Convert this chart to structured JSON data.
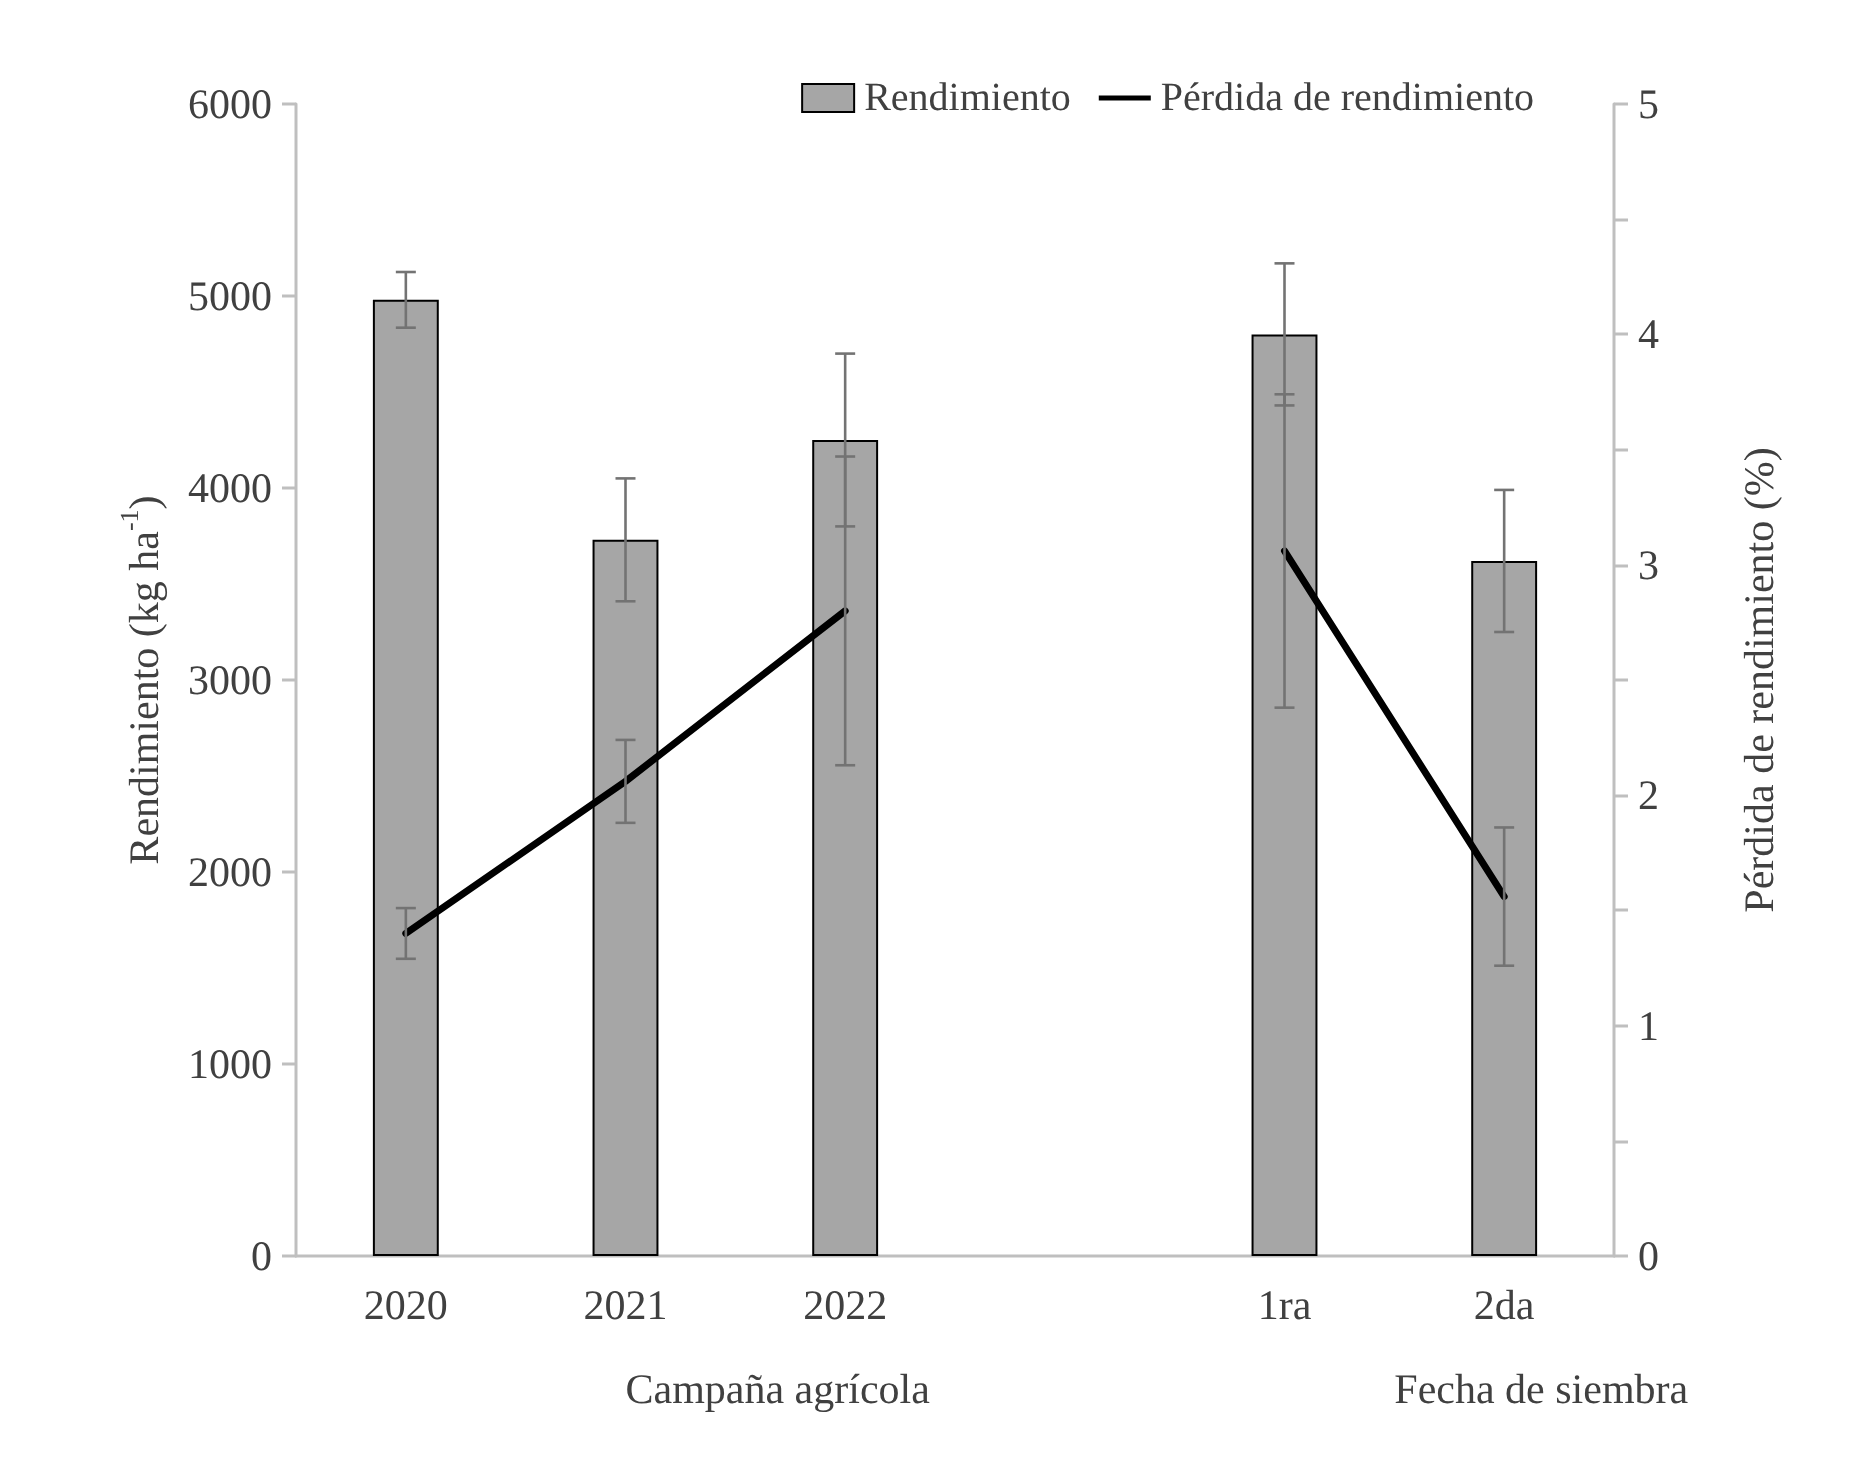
{
  "chart_data": {
    "type": "bar",
    "categories": [
      "2020",
      "2021",
      "2022",
      null,
      "1ra",
      "2da"
    ],
    "series": [
      {
        "name": "Rendimiento",
        "color": "#a6a6a6",
        "values": [
          4980,
          3730,
          4250,
          null,
          4800,
          3620
        ],
        "errors": [
          145,
          320,
          450,
          null,
          370,
          370
        ]
      },
      {
        "name": "Pérdida de rendimiento",
        "type": "line",
        "axis": "y2",
        "color": "#000000",
        "values": [
          1.4,
          2.06,
          2.8,
          null,
          3.06,
          1.56
        ],
        "errors": [
          0.11,
          0.18,
          0.67,
          null,
          0.68,
          0.3
        ]
      }
    ],
    "ylabel": "Rendimiento (kg ha$^{-1}$)",
    "y2label": "Pérdida de rendimiento (%)",
    "ylim": [
      0,
      6000
    ],
    "yticks": [
      0,
      1000,
      2000,
      3000,
      4000,
      5000,
      6000
    ],
    "y2lim": [
      0,
      5
    ],
    "y2ticks": [
      0,
      {
        "value": 0.5,
        "label": null
      },
      1,
      {
        "value": 1.5,
        "label": null
      },
      2,
      {
        "value": 2.5,
        "label": null
      },
      3,
      {
        "value": 3.5,
        "label": null
      },
      4,
      {
        "value": 4.5,
        "label": null
      },
      5
    ],
    "annotations": [
      "Campaña agrícola",
      "Fecha de siembra"
    ],
    "legend": "top right",
    "grid": false,
    "marker": "none",
    "line_style": "solid"
  }
}
